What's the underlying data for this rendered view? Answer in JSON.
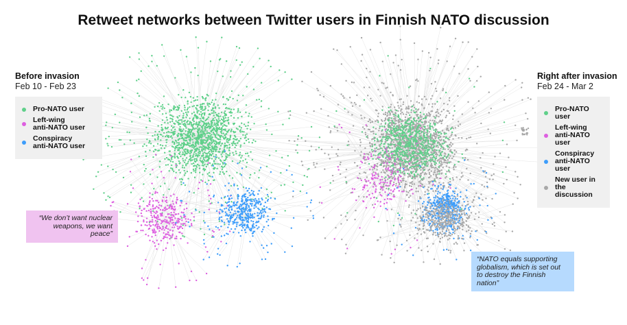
{
  "title": "Retweet networks between Twitter users in Finnish NATO discussion",
  "colors": {
    "pro_nato": "#5fd08a",
    "left_wing": "#dd5fe0",
    "conspiracy": "#3d9dfb",
    "new_user": "#a8a8a8",
    "quote_pink": "#f0c3f0",
    "quote_blue": "#b6dafe"
  },
  "before": {
    "title": "Before invasion",
    "dates": "Feb 10 - Feb 23",
    "legend": [
      "Pro-NATO user",
      "Left-wing\nanti-NATO user",
      "Conspiracy\nanti-NATO user"
    ],
    "quote": "“We don’t want nuclear\nweapons, we want peace”"
  },
  "after": {
    "title": "Right after invasion",
    "dates": "Feb 24 - Mar 2",
    "legend": [
      "Pro-NATO user",
      "Left-wing\nanti-NATO user",
      "Conspiracy\nanti-NATO user",
      "New user in the\ndiscussion"
    ],
    "quote": "“NATO equals supporting\nglobalism, which is set out\nto destroy the Finnish nation”"
  }
}
